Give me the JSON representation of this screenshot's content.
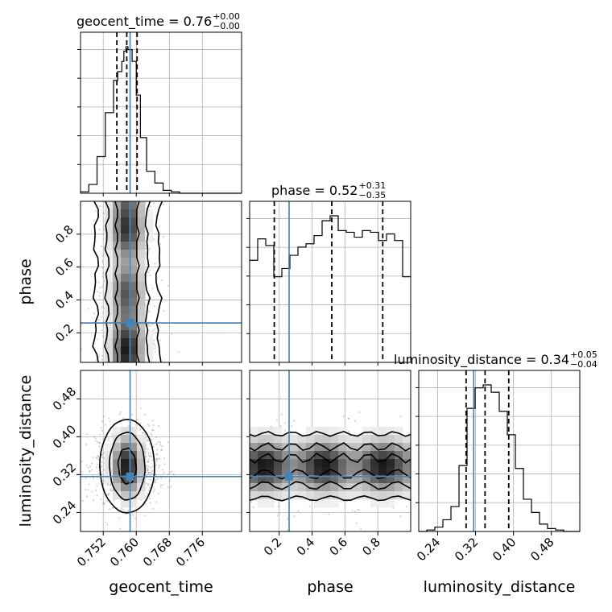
{
  "chart_data": {
    "type": "corner",
    "parameters": [
      "geocent_time",
      "phase",
      "luminosity_distance"
    ],
    "axis_labels": {
      "geocent_time": "geocent_time",
      "phase": "phase",
      "luminosity_distance": "luminosity_distance"
    },
    "ranges": {
      "geocent_time": [
        0.7465,
        0.7855
      ],
      "phase": [
        0.02,
        1.0
      ],
      "luminosity_distance": [
        0.2,
        0.54
      ]
    },
    "ticks": {
      "geocent_time": [
        "0.752",
        "0.760",
        "0.768",
        "0.776"
      ],
      "phase": [
        "0.2",
        "0.4",
        "0.6",
        "0.8"
      ],
      "luminosity_distance": [
        "0.24",
        "0.32",
        "0.40",
        "0.48"
      ]
    },
    "truths": {
      "geocent_time": 0.7585,
      "phase": 0.26,
      "luminosity_distance": 0.316
    },
    "titles": {
      "geocent_time": {
        "name": "geocent_time",
        "median": "0.76",
        "plus": "+0.00",
        "minus": "−0.00"
      },
      "phase": {
        "name": "phase",
        "median": "0.52",
        "plus": "+0.31",
        "minus": "−0.35"
      },
      "luminosity_distance": {
        "name": "luminosity_distance",
        "median": "0.34",
        "plus": "+0.05",
        "minus": "−0.04"
      }
    },
    "quantiles": {
      "geocent_time": [
        0.7553,
        0.7577,
        0.7602
      ],
      "phase": [
        0.17,
        0.52,
        0.83
      ],
      "luminosity_distance": [
        0.3,
        0.34,
        0.39
      ]
    },
    "histograms": {
      "geocent_time": {
        "edges": [
          0.7465,
          0.7485,
          0.7505,
          0.7525,
          0.7545,
          0.7555,
          0.7565,
          0.757,
          0.7575,
          0.758,
          0.759,
          0.76,
          0.761,
          0.7625,
          0.7645,
          0.7665,
          0.7685,
          0.7705,
          0.7855
        ],
        "counts": [
          1,
          6,
          25,
          55,
          77,
          83,
          90,
          97,
          100,
          98,
          90,
          67,
          38,
          15,
          7,
          2,
          1,
          0
        ]
      },
      "phase": {
        "bins": 20,
        "counts": [
          62,
          75,
          71,
          52,
          57,
          65,
          70,
          72,
          77,
          86,
          89,
          80,
          79,
          76,
          80,
          79,
          74,
          78,
          74,
          52
        ]
      },
      "luminosity_distance": {
        "edges": [
          0.2,
          0.217,
          0.234,
          0.251,
          0.268,
          0.285,
          0.302,
          0.319,
          0.336,
          0.353,
          0.37,
          0.387,
          0.404,
          0.421,
          0.438,
          0.455,
          0.472,
          0.489,
          0.506,
          0.54
        ],
        "counts": [
          0,
          1,
          3,
          8,
          17,
          45,
          84,
          98,
          100,
          95,
          82,
          66,
          43,
          22,
          13,
          5,
          2,
          1,
          0
        ]
      }
    }
  }
}
